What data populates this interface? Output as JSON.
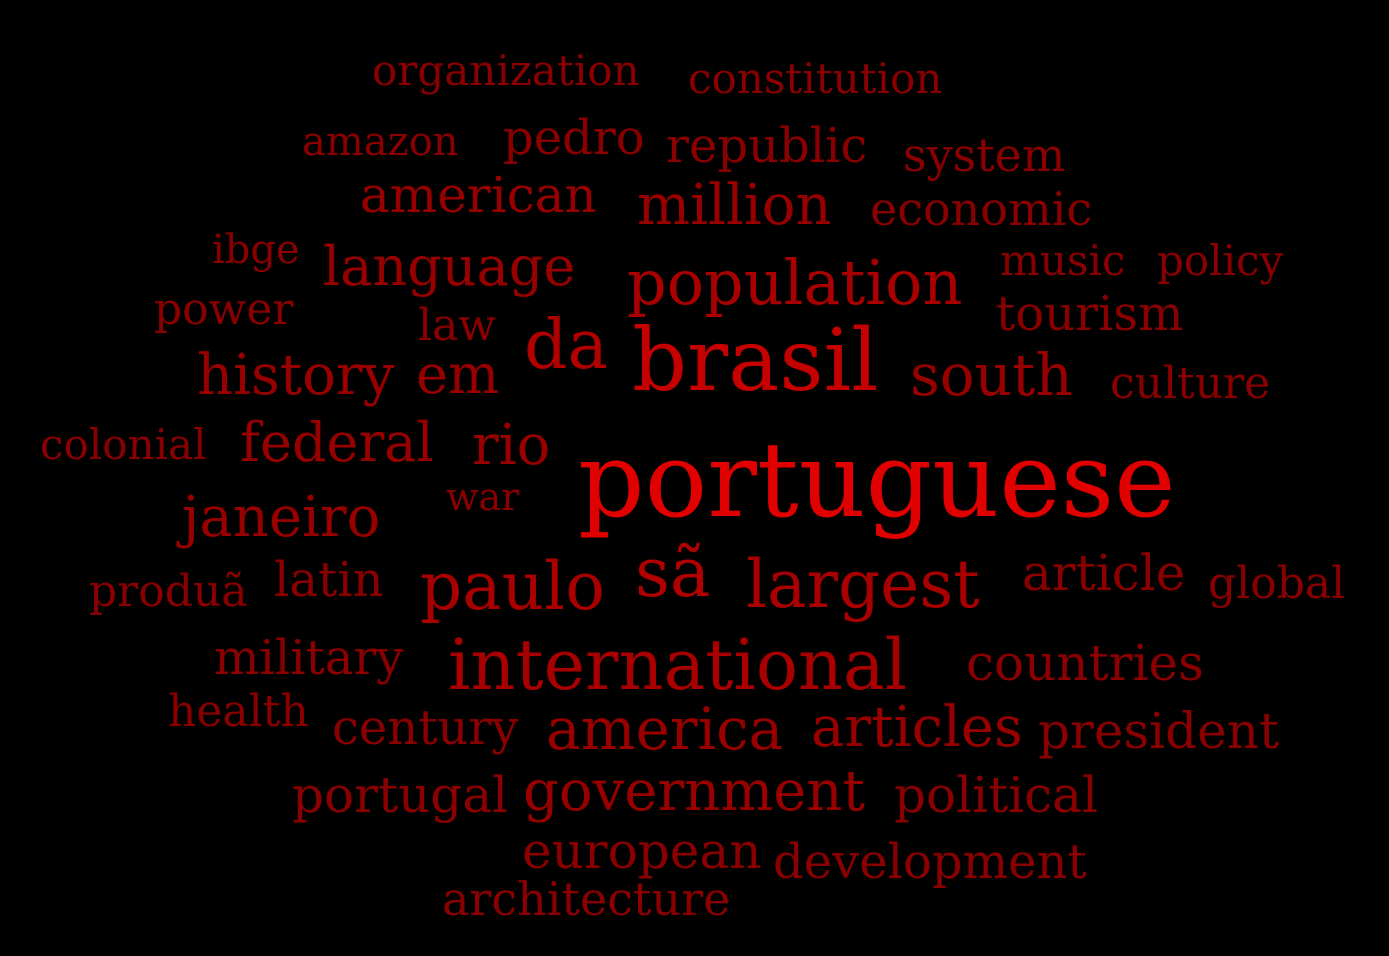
{
  "words": [
    {
      "text": "organization",
      "color": "#8a0000",
      "weight": 0.35
    },
    {
      "text": "constitution",
      "color": "#8a0000",
      "weight": 0.35
    },
    {
      "text": "amazon",
      "color": "#8a0000",
      "weight": 0.33
    },
    {
      "text": "pedro",
      "color": "#8a0000",
      "weight": 0.37
    },
    {
      "text": "republic",
      "color": "#8a0000",
      "weight": 0.37
    },
    {
      "text": "system",
      "color": "#8a0000",
      "weight": 0.37
    },
    {
      "text": "american",
      "color": "#980000",
      "weight": 0.42
    },
    {
      "text": "million",
      "color": "#980000",
      "weight": 0.45
    },
    {
      "text": "economic",
      "color": "#8a0000",
      "weight": 0.38
    },
    {
      "text": "ibge",
      "color": "#8a0000",
      "weight": 0.3
    },
    {
      "text": "language",
      "color": "#980000",
      "weight": 0.45
    },
    {
      "text": "population",
      "color": "#a80000",
      "weight": 0.55
    },
    {
      "text": "music",
      "color": "#8a0000",
      "weight": 0.33
    },
    {
      "text": "policy",
      "color": "#8a0000",
      "weight": 0.33
    },
    {
      "text": "power",
      "color": "#8a0000",
      "weight": 0.33
    },
    {
      "text": "law",
      "color": "#8a0000",
      "weight": 0.33
    },
    {
      "text": "tourism",
      "color": "#8a0000",
      "weight": 0.37
    },
    {
      "text": "da",
      "color": "#b00000",
      "weight": 0.58
    },
    {
      "text": "brasil",
      "color": "#c40000",
      "weight": 0.75
    },
    {
      "text": "history",
      "color": "#980000",
      "weight": 0.45
    },
    {
      "text": "em",
      "color": "#980000",
      "weight": 0.45
    },
    {
      "text": "south",
      "color": "#980000",
      "weight": 0.45
    },
    {
      "text": "culture",
      "color": "#8a0000",
      "weight": 0.35
    },
    {
      "text": "colonial",
      "color": "#8a0000",
      "weight": 0.33
    },
    {
      "text": "federal",
      "color": "#980000",
      "weight": 0.43
    },
    {
      "text": "rio",
      "color": "#980000",
      "weight": 0.45
    },
    {
      "text": "portuguese",
      "color": "#e00000",
      "weight": 1.0
    },
    {
      "text": "war",
      "color": "#8a0000",
      "weight": 0.28
    },
    {
      "text": "janeiro",
      "color": "#980000",
      "weight": 0.45
    },
    {
      "text": "produã",
      "color": "#8a0000",
      "weight": 0.33
    },
    {
      "text": "latin",
      "color": "#8a0000",
      "weight": 0.37
    },
    {
      "text": "paulo",
      "color": "#a80000",
      "weight": 0.52
    },
    {
      "text": "sã",
      "color": "#b00000",
      "weight": 0.55
    },
    {
      "text": "largest",
      "color": "#a80000",
      "weight": 0.52
    },
    {
      "text": "article",
      "color": "#8a0000",
      "weight": 0.38
    },
    {
      "text": "global",
      "color": "#8a0000",
      "weight": 0.33
    },
    {
      "text": "military",
      "color": "#8a0000",
      "weight": 0.38
    },
    {
      "text": "international",
      "color": "#a80000",
      "weight": 0.58
    },
    {
      "text": "countries",
      "color": "#8a0000",
      "weight": 0.38
    },
    {
      "text": "health",
      "color": "#8a0000",
      "weight": 0.33
    },
    {
      "text": "century",
      "color": "#8a0000",
      "weight": 0.37
    },
    {
      "text": "america",
      "color": "#980000",
      "weight": 0.45
    },
    {
      "text": "articles",
      "color": "#980000",
      "weight": 0.43
    },
    {
      "text": "president",
      "color": "#8a0000",
      "weight": 0.38
    },
    {
      "text": "portugal",
      "color": "#8a0000",
      "weight": 0.38
    },
    {
      "text": "government",
      "color": "#980000",
      "weight": 0.45
    },
    {
      "text": "political",
      "color": "#8a0000",
      "weight": 0.38
    },
    {
      "text": "european",
      "color": "#8a0000",
      "weight": 0.37
    },
    {
      "text": "development",
      "color": "#8a0000",
      "weight": 0.37
    },
    {
      "text": "architecture",
      "color": "#8a0000",
      "weight": 0.35
    }
  ]
}
